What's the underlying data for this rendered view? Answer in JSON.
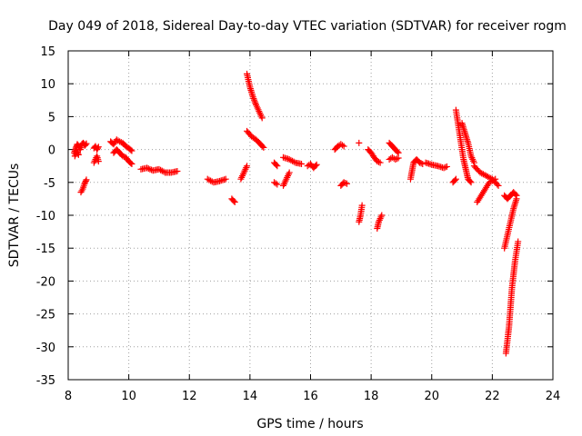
{
  "chart_data": {
    "type": "scatter",
    "title": "Day 049 of 2018, Sidereal Day-to-day VTEC variation (SDTVAR) for receiver rogm",
    "xlabel": "GPS time / hours",
    "ylabel": "SDTVAR / TECUs",
    "xlim": [
      8,
      24
    ],
    "ylim": [
      -35,
      15
    ],
    "xticks": [
      "8",
      "10",
      "12",
      "14",
      "16",
      "18",
      "20",
      "22",
      "24"
    ],
    "yticks": [
      "15",
      "10",
      "5",
      "0",
      "-5",
      "-10",
      "-15",
      "-20",
      "-25",
      "-30",
      "-35"
    ],
    "grid": true,
    "marker": "+",
    "color": "#ff0000",
    "series": [
      {
        "name": "seg01",
        "x": [
          8.2,
          8.25,
          8.3,
          8.35,
          8.4,
          8.45,
          8.5,
          8.55,
          8.6
        ],
        "y": [
          -0.5,
          0.2,
          0.8,
          0.5,
          0.0,
          0.8,
          1.0,
          0.6,
          0.9
        ]
      },
      {
        "name": "seg02",
        "x": [
          8.22,
          8.28,
          8.34
        ],
        "y": [
          -1.0,
          -0.2,
          -0.8
        ]
      },
      {
        "name": "seg03",
        "x": [
          8.42,
          8.48,
          8.54,
          8.6
        ],
        "y": [
          -6.5,
          -6.0,
          -5.2,
          -4.6
        ]
      },
      {
        "name": "seg04",
        "x": [
          8.85,
          8.9,
          8.95,
          9.0
        ],
        "y": [
          0.2,
          0.5,
          0.0,
          0.4
        ]
      },
      {
        "name": "seg05",
        "x": [
          8.85,
          8.9,
          8.95,
          9.0
        ],
        "y": [
          -2.0,
          -1.5,
          -1.0,
          -1.8
        ]
      },
      {
        "name": "seg06",
        "x": [
          9.4,
          9.5,
          9.6,
          9.7,
          9.8,
          9.9,
          10.0,
          10.1
        ],
        "y": [
          1.2,
          0.8,
          1.5,
          1.2,
          1.0,
          0.5,
          0.2,
          -0.2
        ]
      },
      {
        "name": "seg07",
        "x": [
          9.5,
          9.6,
          9.7,
          9.8,
          9.9,
          10.0,
          10.1
        ],
        "y": [
          -0.5,
          0.0,
          -0.5,
          -1.0,
          -1.2,
          -1.8,
          -2.2
        ]
      },
      {
        "name": "seg08",
        "x": [
          10.4,
          10.6,
          10.8,
          11.0,
          11.2,
          11.4,
          11.6
        ],
        "y": [
          -3.0,
          -2.8,
          -3.2,
          -3.0,
          -3.5,
          -3.5,
          -3.3
        ]
      },
      {
        "name": "seg09",
        "x": [
          12.6,
          12.8,
          13.0,
          13.2
        ],
        "y": [
          -4.5,
          -5.0,
          -4.8,
          -4.5
        ]
      },
      {
        "name": "seg10",
        "x": [
          13.4,
          13.5
        ],
        "y": [
          -7.5,
          -8.0
        ]
      },
      {
        "name": "seg11",
        "x": [
          13.7,
          13.8,
          13.9
        ],
        "y": [
          -4.5,
          -3.5,
          -2.5
        ]
      },
      {
        "name": "seg12",
        "x": [
          13.9,
          14.0,
          14.1,
          14.2,
          14.3,
          14.4
        ],
        "y": [
          11.5,
          9.5,
          8.0,
          6.8,
          5.8,
          4.8
        ]
      },
      {
        "name": "seg13",
        "x": [
          13.9,
          14.05,
          14.2,
          14.35,
          14.45
        ],
        "y": [
          2.8,
          2.0,
          1.5,
          0.8,
          0.3
        ]
      },
      {
        "name": "seg14",
        "x": [
          14.8,
          14.9
        ],
        "y": [
          -5.0,
          -5.3
        ]
      },
      {
        "name": "seg15",
        "x": [
          14.8,
          14.9
        ],
        "y": [
          -2.0,
          -2.5
        ]
      },
      {
        "name": "seg16",
        "x": [
          15.1,
          15.2,
          15.3
        ],
        "y": [
          -5.5,
          -4.5,
          -3.5
        ]
      },
      {
        "name": "seg17",
        "x": [
          15.1,
          15.3,
          15.5,
          15.7
        ],
        "y": [
          -1.2,
          -1.5,
          -2.0,
          -2.2
        ]
      },
      {
        "name": "seg18",
        "x": [
          15.9,
          16.0,
          16.1,
          16.2
        ],
        "y": [
          -2.5,
          -2.2,
          -2.8,
          -2.3
        ]
      },
      {
        "name": "seg19",
        "x": [
          16.8,
          16.9,
          17.0,
          17.1
        ],
        "y": [
          0.0,
          0.5,
          0.8,
          0.5
        ]
      },
      {
        "name": "seg20",
        "x": [
          17.0,
          17.1,
          17.2
        ],
        "y": [
          -5.5,
          -5.0,
          -5.2
        ]
      },
      {
        "name": "seg21",
        "x": [
          17.6
        ],
        "y": [
          1.0
        ]
      },
      {
        "name": "seg22",
        "x": [
          17.6,
          17.65,
          17.7
        ],
        "y": [
          -11.0,
          -10.0,
          -8.5
        ]
      },
      {
        "name": "seg23",
        "x": [
          17.9,
          18.0,
          18.1,
          18.2,
          18.3
        ],
        "y": [
          0.0,
          -0.5,
          -1.2,
          -1.8,
          -2.0
        ]
      },
      {
        "name": "seg24",
        "x": [
          18.2,
          18.25,
          18.3,
          18.35
        ],
        "y": [
          -12.0,
          -11.0,
          -10.5,
          -10.0
        ]
      },
      {
        "name": "seg25",
        "x": [
          18.6,
          18.7,
          18.8,
          18.9
        ],
        "y": [
          1.0,
          0.5,
          0.0,
          -0.5
        ]
      },
      {
        "name": "seg26",
        "x": [
          18.6,
          18.7,
          18.8,
          18.9
        ],
        "y": [
          -1.5,
          -1.2,
          -1.5,
          -1.3
        ]
      },
      {
        "name": "seg27",
        "x": [
          19.3,
          19.4,
          19.5,
          19.6,
          19.7
        ],
        "y": [
          -4.5,
          -2.0,
          -1.5,
          -2.0,
          -2.2
        ]
      },
      {
        "name": "seg28",
        "x": [
          19.8,
          20.0,
          20.2,
          20.4,
          20.5
        ],
        "y": [
          -2.0,
          -2.3,
          -2.5,
          -2.8,
          -2.6
        ]
      },
      {
        "name": "seg29",
        "x": [
          20.7,
          20.8
        ],
        "y": [
          -5.0,
          -4.5
        ]
      },
      {
        "name": "seg30",
        "x": [
          20.8,
          20.85,
          20.9,
          20.95,
          21.0,
          21.05,
          21.1,
          21.15,
          21.2,
          21.3
        ],
        "y": [
          6.0,
          4.5,
          3.0,
          1.5,
          0.0,
          -1.5,
          -2.5,
          -3.5,
          -4.5,
          -5.0
        ]
      },
      {
        "name": "seg31",
        "x": [
          21.0,
          21.1,
          21.2,
          21.3,
          21.4
        ],
        "y": [
          4.0,
          2.5,
          1.0,
          -1.0,
          -2.0
        ]
      },
      {
        "name": "seg32",
        "x": [
          21.4,
          21.6,
          21.8,
          22.0,
          22.2
        ],
        "y": [
          -2.5,
          -3.5,
          -4.0,
          -4.5,
          -5.5
        ]
      },
      {
        "name": "seg33",
        "x": [
          21.5,
          21.7,
          21.9,
          22.1
        ],
        "y": [
          -8.0,
          -6.5,
          -5.0,
          -4.5
        ]
      },
      {
        "name": "seg34",
        "x": [
          22.4,
          22.5,
          22.6,
          22.7,
          22.8
        ],
        "y": [
          -7.0,
          -7.5,
          -7.0,
          -6.5,
          -7.0
        ]
      },
      {
        "name": "seg35",
        "x": [
          22.4,
          22.5,
          22.6,
          22.7,
          22.8
        ],
        "y": [
          -15.0,
          -13.0,
          -11.0,
          -9.0,
          -7.5
        ]
      },
      {
        "name": "seg36",
        "x": [
          22.45,
          22.55,
          22.65,
          22.75,
          22.85
        ],
        "y": [
          -31.0,
          -27.0,
          -21.0,
          -17.0,
          -14.0
        ]
      }
    ]
  }
}
